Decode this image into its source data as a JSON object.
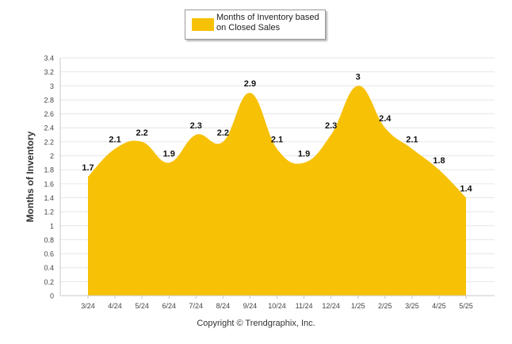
{
  "chart_data": {
    "type": "area",
    "legend": {
      "label": "Months of Inventory based on Closed Sales",
      "position": "top-center"
    },
    "ylabel": "Months of Inventory",
    "xlabel": "",
    "ylim": [
      0,
      3.4
    ],
    "yticks": [
      0,
      0.2,
      0.4,
      0.6,
      0.8,
      1,
      1.2,
      1.4,
      1.6,
      1.8,
      2,
      2.2,
      2.4,
      2.6,
      2.8,
      3,
      3.2,
      3.4
    ],
    "grid": true,
    "categories": [
      "3/24",
      "4/24",
      "5/24",
      "6/24",
      "7/24",
      "8/24",
      "9/24",
      "10/24",
      "11/24",
      "12/24",
      "1/25",
      "2/25",
      "3/25",
      "4/25",
      "5/25"
    ],
    "series": [
      {
        "name": "Months of Inventory based on Closed Sales",
        "values": [
          1.7,
          2.1,
          2.2,
          1.9,
          2.3,
          2.2,
          2.9,
          2.1,
          1.9,
          2.3,
          3,
          2.4,
          2.1,
          1.8,
          1.4
        ]
      }
    ],
    "data_labels": [
      "1.7",
      "2.1",
      "2.2",
      "1.9",
      "2.3",
      "2.2",
      "2.9",
      "2.1",
      "1.9",
      "2.3",
      "3",
      "2.4",
      "2.1",
      "1.8",
      "1.4"
    ],
    "colors": {
      "fill": "#F7C106",
      "grid": "#e6e6e6",
      "axis": "#c9c9c9"
    }
  },
  "footer": {
    "copyright": "Copyright © Trendgraphix, Inc."
  }
}
